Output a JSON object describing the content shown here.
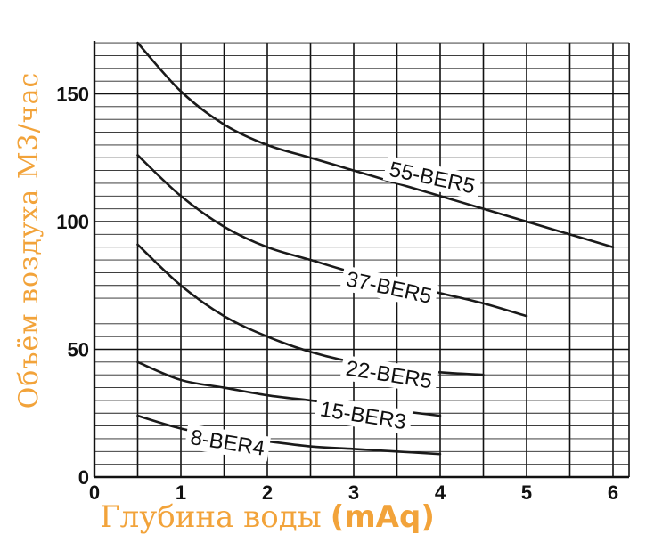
{
  "chart_data": {
    "type": "line",
    "xlabel": "Глубина воды",
    "xlabel_unit": "(mAq)",
    "ylabel": "Объём воздуха М3/час",
    "xlim": [
      0,
      6.5
    ],
    "ylim": [
      0,
      170
    ],
    "x_ticks": [
      "0",
      "1",
      "2",
      "3",
      "4",
      "5",
      "6"
    ],
    "y_ticks": [
      "0",
      "50",
      "100",
      "150"
    ],
    "grid": true,
    "series": [
      {
        "name": "55-BER5",
        "label_at": [
          3.4,
          118
        ],
        "label_angle": 12,
        "points": [
          [
            0.5,
            170
          ],
          [
            1.0,
            151
          ],
          [
            1.5,
            138
          ],
          [
            2.0,
            130
          ],
          [
            2.5,
            125
          ],
          [
            3.0,
            120
          ],
          [
            3.5,
            115
          ],
          [
            4.0,
            110
          ],
          [
            4.5,
            105
          ],
          [
            5.0,
            100
          ],
          [
            5.5,
            95
          ],
          [
            6.0,
            90
          ]
        ]
      },
      {
        "name": "37-BER5",
        "label_at": [
          2.9,
          75
        ],
        "label_angle": 12,
        "points": [
          [
            0.5,
            126
          ],
          [
            1.0,
            110
          ],
          [
            1.5,
            98
          ],
          [
            2.0,
            90
          ],
          [
            2.5,
            85
          ],
          [
            3.0,
            80
          ],
          [
            3.5,
            76
          ],
          [
            4.0,
            72
          ],
          [
            4.5,
            68
          ],
          [
            5.0,
            63
          ]
        ]
      },
      {
        "name": "22-BER5",
        "label_at": [
          2.9,
          40
        ],
        "label_angle": 9,
        "points": [
          [
            0.5,
            91
          ],
          [
            1.0,
            75
          ],
          [
            1.5,
            63
          ],
          [
            2.0,
            55
          ],
          [
            2.5,
            49
          ],
          [
            3.0,
            45
          ],
          [
            3.5,
            43
          ],
          [
            4.0,
            41
          ],
          [
            4.5,
            40
          ]
        ]
      },
      {
        "name": "15-BER3",
        "label_at": [
          2.6,
          24
        ],
        "label_angle": 9,
        "points": [
          [
            0.5,
            45
          ],
          [
            1.0,
            38
          ],
          [
            1.5,
            35
          ],
          [
            2.0,
            32
          ],
          [
            2.5,
            30
          ],
          [
            3.0,
            28
          ],
          [
            3.5,
            26
          ],
          [
            4.0,
            24
          ]
        ]
      },
      {
        "name": "8-BER4",
        "label_at": [
          1.1,
          13
        ],
        "label_angle": 9,
        "points": [
          [
            0.5,
            24
          ],
          [
            1.0,
            19
          ],
          [
            1.5,
            16
          ],
          [
            2.0,
            14
          ],
          [
            2.5,
            12
          ],
          [
            3.0,
            11
          ],
          [
            3.5,
            10
          ],
          [
            4.0,
            9
          ]
        ]
      }
    ]
  },
  "colors": {
    "axis_label": "#f2a33a",
    "curve": "#1a1a1a",
    "grid": "#111111"
  }
}
